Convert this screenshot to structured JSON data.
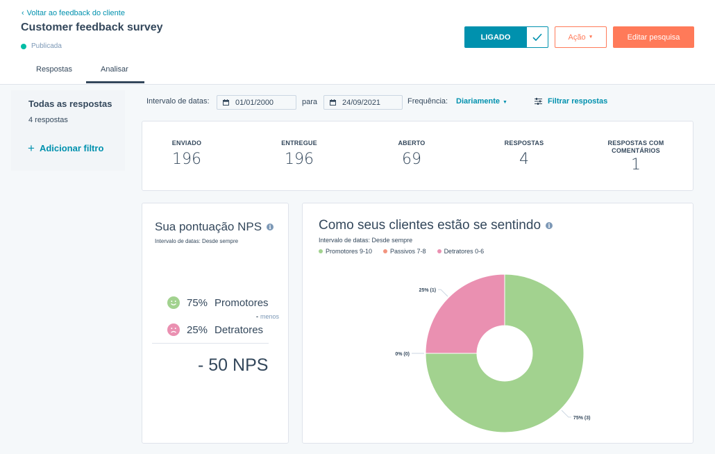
{
  "header": {
    "back_label": "Voltar ao feedback do cliente",
    "title": "Customer feedback survey",
    "status": "Publicada",
    "on_label": "LIGADO",
    "action_label": "Ação",
    "edit_label": "Editar pesquisa"
  },
  "tabs": [
    "Respostas",
    "Analisar"
  ],
  "sidebar": {
    "title": "Todas as respostas",
    "count": "4 respostas",
    "add_filter": "Adicionar filtro"
  },
  "filters": {
    "date_range_label": "Intervalo de datas:",
    "start_date": "01/01/2000",
    "to_label": "para",
    "end_date": "24/09/2021",
    "frequency_label": "Frequência:",
    "frequency_value": "Diariamente",
    "filter_responses": "Filtrar respostas"
  },
  "stats": [
    {
      "label": "ENVIADO",
      "value": "196"
    },
    {
      "label": "ENTREGUE",
      "value": "196"
    },
    {
      "label": "ABERTO",
      "value": "69"
    },
    {
      "label": "RESPOSTAS",
      "value": "4"
    },
    {
      "label": "RESPOSTAS COM COMENTÁRIOS",
      "value": "1"
    }
  ],
  "nps": {
    "title": "Sua pontuação NPS",
    "subtitle": "Intervalo de datas: Desde sempre",
    "promoters_pct": "75%",
    "promoters_label": "Promotores",
    "minus_label": "menos",
    "detractors_pct": "25%",
    "detractors_label": "Detratores",
    "score": "50 NPS"
  },
  "colors": {
    "accent": "#0091ae",
    "orange": "#ff7a59",
    "promoters": "#a2d28f",
    "passives": "#f2947f",
    "detractors": "#ea90b1"
  },
  "chart_title": "Como seus clientes estão se sentindo",
  "chart_subtitle": "Intervalo de datas: Desde sempre",
  "chart_data": {
    "type": "pie",
    "donut": true,
    "categories": [
      "Promotores 9-10",
      "Passivos 7-8",
      "Detratores 0-6"
    ],
    "values": [
      3,
      0,
      1
    ],
    "percent": [
      75,
      0,
      25
    ],
    "data_labels": [
      "75% (3)",
      "0% (0)",
      "25% (1)"
    ],
    "colors": [
      "#a2d28f",
      "#f2947f",
      "#ea90b1"
    ],
    "legend": "top-left"
  }
}
